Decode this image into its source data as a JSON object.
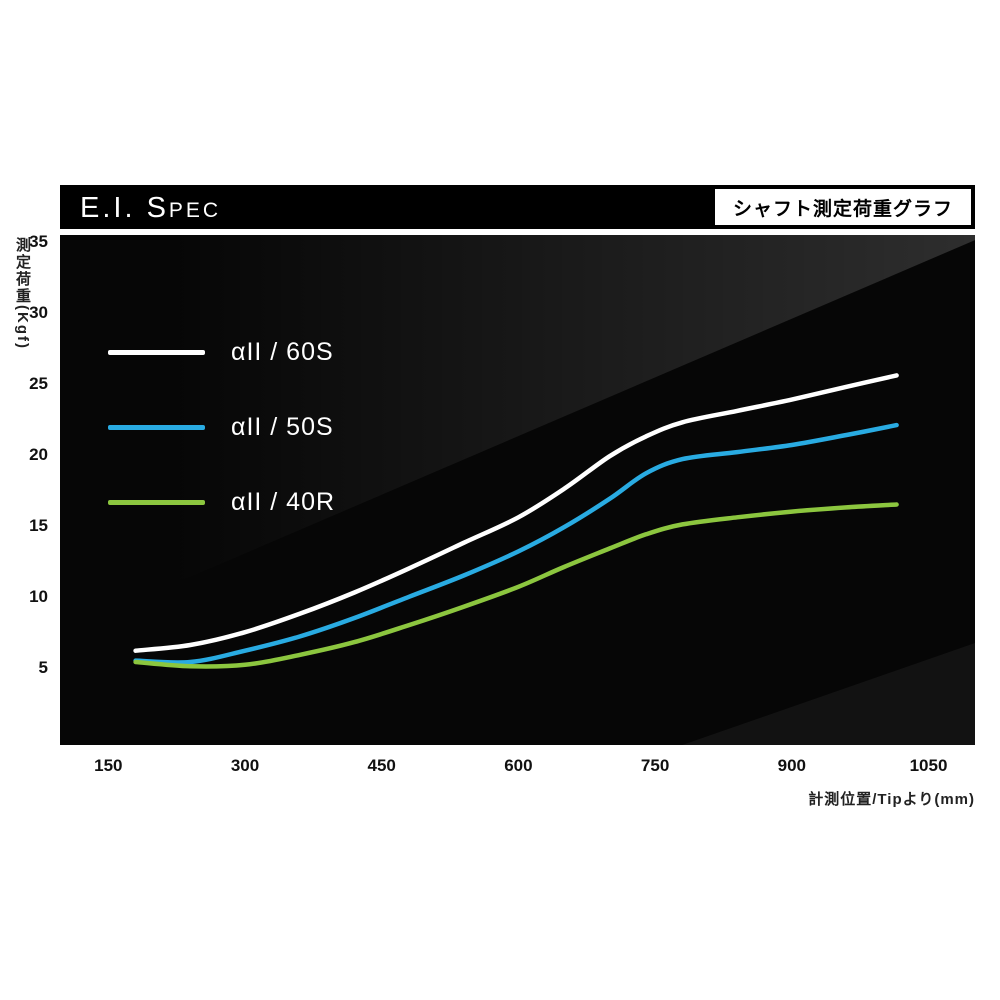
{
  "header": {
    "title_big": "E.I. S",
    "title_small": "PEC",
    "subtitle": "シャフト測定荷重グラフ"
  },
  "chart_data": {
    "type": "line",
    "title": "E.I. Spec",
    "subtitle": "シャフト測定荷重グラフ",
    "xlabel": "計測位置/Tipより(mm)",
    "ylabel": "測定荷重(Kgf)",
    "x_range": [
      97,
      1101
    ],
    "y_range": [
      -0.45,
      35.5
    ],
    "xticks": [
      150,
      300,
      450,
      600,
      750,
      900,
      1050
    ],
    "yticks": [
      5,
      10,
      15,
      20,
      25,
      30,
      35
    ],
    "grid": false,
    "legend_position": "upper-left",
    "background": "#060606",
    "series": [
      {
        "name": "αII / 60S",
        "color": "#ffffff",
        "x": [
          180,
          240,
          300,
          360,
          420,
          480,
          540,
          600,
          650,
          700,
          740,
          780,
          840,
          900,
          960,
          1015
        ],
        "y": [
          6.2,
          6.6,
          7.5,
          8.8,
          10.3,
          12.0,
          13.8,
          15.6,
          17.6,
          19.9,
          21.3,
          22.3,
          23.1,
          23.9,
          24.8,
          25.6
        ]
      },
      {
        "name": "αII / 50S",
        "color": "#29abe2",
        "x": [
          180,
          240,
          300,
          360,
          420,
          480,
          540,
          600,
          650,
          700,
          740,
          780,
          840,
          900,
          960,
          1015
        ],
        "y": [
          5.5,
          5.4,
          6.2,
          7.2,
          8.5,
          10.0,
          11.5,
          13.2,
          14.9,
          16.9,
          18.7,
          19.7,
          20.2,
          20.7,
          21.4,
          22.1
        ]
      },
      {
        "name": "αII / 40R",
        "color": "#8cc63f",
        "x": [
          180,
          240,
          300,
          360,
          420,
          480,
          540,
          600,
          650,
          700,
          740,
          780,
          840,
          900,
          960,
          1015
        ],
        "y": [
          5.4,
          5.1,
          5.2,
          5.9,
          6.8,
          8.0,
          9.3,
          10.7,
          12.1,
          13.4,
          14.4,
          15.1,
          15.6,
          16.0,
          16.3,
          16.5
        ]
      }
    ]
  }
}
